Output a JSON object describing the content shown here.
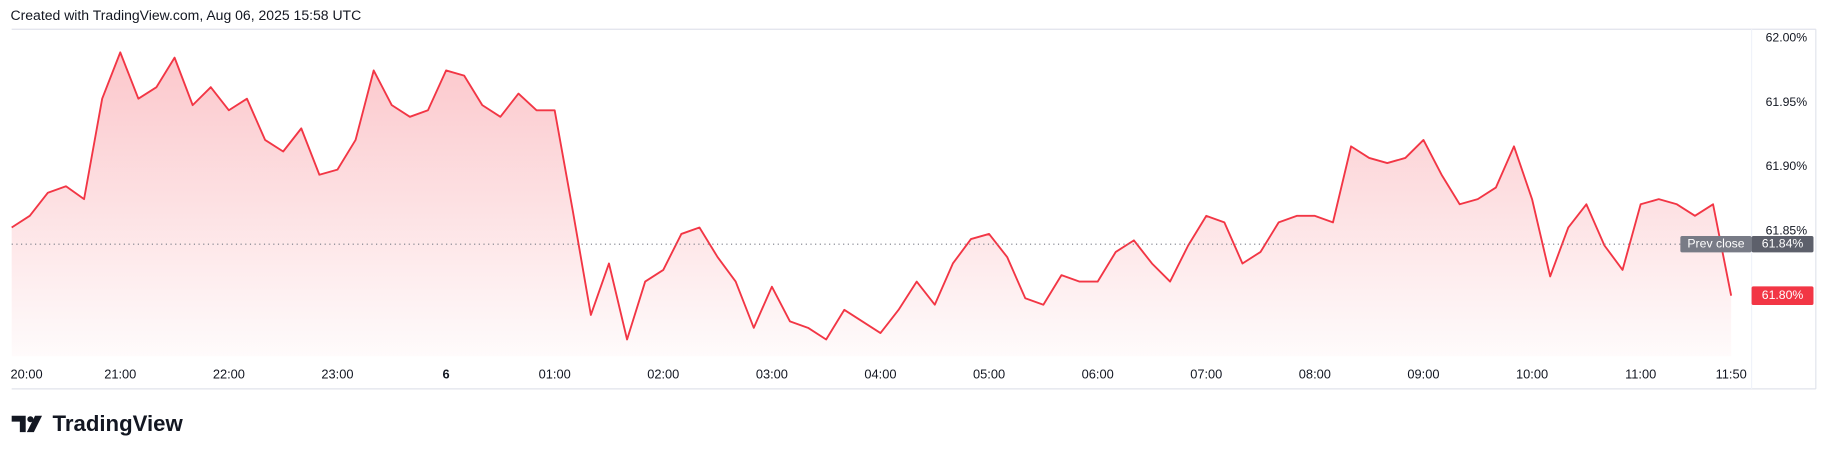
{
  "header": {
    "text": "Created with TradingView.com, Aug 06, 2025 15:58 UTC"
  },
  "logo": {
    "text": "TradingView"
  },
  "chart_data": {
    "type": "area",
    "color": "#f23645",
    "categories": [
      "20:00",
      null,
      null,
      null,
      null,
      null,
      "21:00",
      null,
      null,
      null,
      null,
      null,
      "22:00",
      null,
      null,
      null,
      null,
      null,
      "23:00",
      null,
      null,
      null,
      null,
      null,
      "6",
      null,
      null,
      null,
      null,
      null,
      "01:00",
      null,
      null,
      null,
      null,
      null,
      "02:00",
      null,
      null,
      null,
      null,
      null,
      "03:00",
      null,
      null,
      null,
      null,
      null,
      "04:00",
      null,
      null,
      null,
      null,
      null,
      "05:00",
      null,
      null,
      null,
      null,
      null,
      "06:00",
      null,
      null,
      null,
      null,
      null,
      "07:00",
      null,
      null,
      null,
      null,
      null,
      "08:00",
      null,
      null,
      null,
      null,
      null,
      "09:00",
      null,
      null,
      null,
      null,
      null,
      "10:00",
      null,
      null,
      null,
      null,
      null,
      "11:00",
      null,
      null,
      null,
      null,
      "11:50"
    ],
    "values": [
      61.853,
      61.862,
      61.88,
      61.885,
      61.875,
      61.953,
      61.989,
      61.953,
      61.962,
      61.985,
      61.948,
      61.962,
      61.944,
      61.953,
      61.921,
      61.912,
      61.93,
      61.894,
      61.898,
      61.921,
      61.975,
      61.948,
      61.939,
      61.944,
      61.975,
      61.971,
      61.948,
      61.939,
      61.957,
      61.944,
      61.944,
      61.866,
      61.785,
      61.825,
      61.766,
      61.811,
      61.82,
      61.848,
      61.853,
      61.83,
      61.811,
      61.775,
      61.807,
      61.78,
      61.775,
      61.766,
      61.789,
      61.78,
      61.771,
      61.789,
      61.811,
      61.793,
      61.825,
      61.844,
      61.848,
      61.83,
      61.798,
      61.793,
      61.816,
      61.811,
      61.811,
      61.834,
      61.843,
      61.825,
      61.811,
      61.839,
      61.862,
      61.857,
      61.825,
      61.834,
      61.857,
      61.862,
      61.862,
      61.857,
      61.916,
      61.907,
      61.903,
      61.907,
      61.921,
      61.894,
      61.871,
      61.875,
      61.884,
      61.916,
      61.875,
      61.815,
      61.853,
      61.871,
      61.839,
      61.82,
      61.871,
      61.875,
      61.871,
      61.862,
      61.871,
      61.8
    ],
    "value_labels": {
      "95": "61.80%"
    },
    "ylim": [
      61.753,
      62.007
    ],
    "yticks": [
      {
        "value": 62.0,
        "label": "62.00%"
      },
      {
        "value": 61.95,
        "label": "61.95%"
      },
      {
        "value": 61.9,
        "label": "61.90%"
      },
      {
        "value": 61.85,
        "label": "61.85%"
      }
    ],
    "prev_close": {
      "name": "Prev close",
      "value": 61.84,
      "label": "61.84%"
    }
  }
}
